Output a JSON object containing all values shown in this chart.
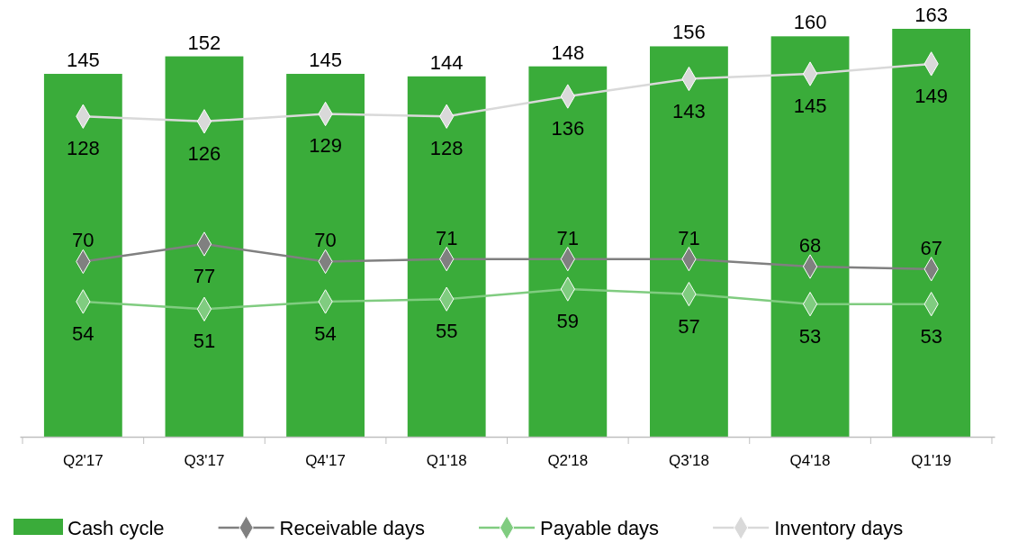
{
  "chart_data": {
    "type": "bar",
    "categories": [
      "Q2'17",
      "Q3'17",
      "Q4'17",
      "Q1'18",
      "Q2'18",
      "Q3'18",
      "Q4'18",
      "Q1'19"
    ],
    "series": [
      {
        "name": "Cash cycle",
        "color": "#3aac3a",
        "values": [
          145,
          152,
          145,
          144,
          148,
          156,
          160,
          163
        ]
      },
      {
        "name": "Receivable days",
        "type": "line",
        "color": "#808080",
        "values": [
          70,
          77,
          70,
          71,
          71,
          71,
          68,
          67
        ]
      },
      {
        "name": "Payable days",
        "type": "line",
        "color": "#80cc80",
        "values": [
          54,
          51,
          54,
          55,
          59,
          57,
          53,
          53
        ]
      },
      {
        "name": "Inventory days",
        "type": "line",
        "color": "#d9d9d9",
        "values": [
          128,
          126,
          129,
          128,
          136,
          143,
          145,
          149
        ]
      }
    ],
    "data_labels": true,
    "legend": "bottom",
    "marker": "diamond"
  }
}
